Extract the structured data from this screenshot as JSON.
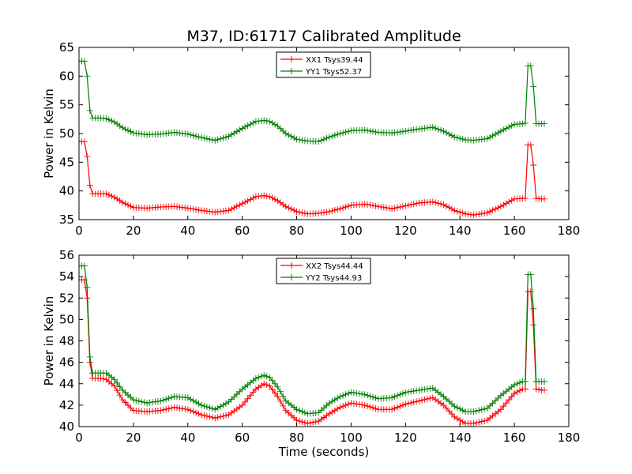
{
  "title": "M37, ID:61717 Calibrated Amplitude",
  "colors": {
    "xx": "#ff0000",
    "yy": "#008000"
  },
  "chart_data": [
    {
      "type": "line",
      "ylabel": "Power in Kelvin",
      "xlabel": "",
      "xlim": [
        0,
        180
      ],
      "ylim": [
        35,
        65
      ],
      "xticks": [
        0,
        20,
        40,
        60,
        80,
        100,
        120,
        140,
        160,
        180
      ],
      "yticks": [
        35,
        40,
        45,
        50,
        55,
        60,
        65
      ],
      "legend": {
        "placement": "top-center"
      },
      "marker": "+",
      "series": [
        {
          "name": "XX1 Tsys39.44",
          "color": "#ff0000",
          "x": [
            0,
            2,
            3,
            4,
            5,
            8,
            10,
            13,
            16,
            20,
            25,
            30,
            35,
            40,
            45,
            50,
            55,
            60,
            65,
            68,
            70,
            73,
            76,
            80,
            84,
            88,
            92,
            96,
            100,
            105,
            110,
            115,
            120,
            125,
            130,
            134,
            138,
            142,
            145,
            150,
            155,
            160,
            163,
            164,
            165,
            166,
            167,
            168,
            170,
            171
          ],
          "y": [
            48.6,
            48.6,
            46.0,
            41.0,
            39.5,
            39.5,
            39.5,
            38.9,
            38.0,
            37.1,
            37.0,
            37.2,
            37.3,
            37.0,
            36.6,
            36.3,
            36.6,
            37.8,
            39.0,
            39.2,
            39.0,
            38.3,
            37.3,
            36.4,
            36.0,
            36.1,
            36.4,
            36.9,
            37.5,
            37.7,
            37.3,
            36.9,
            37.4,
            37.9,
            38.1,
            37.6,
            36.6,
            36.0,
            35.8,
            36.2,
            37.3,
            38.6,
            38.7,
            38.7,
            48.0,
            48.0,
            44.5,
            38.7,
            38.6,
            38.6
          ]
        },
        {
          "name": "YY1 Tsys52.37",
          "color": "#008000",
          "x": [
            0,
            2,
            3,
            4,
            5,
            8,
            10,
            13,
            16,
            20,
            25,
            30,
            35,
            40,
            45,
            50,
            55,
            60,
            65,
            68,
            70,
            73,
            76,
            80,
            84,
            88,
            92,
            96,
            100,
            105,
            110,
            115,
            120,
            125,
            130,
            134,
            138,
            142,
            145,
            150,
            155,
            160,
            163,
            164,
            165,
            166,
            167,
            168,
            170,
            171
          ],
          "y": [
            62.6,
            62.6,
            60.0,
            54.0,
            52.7,
            52.7,
            52.6,
            52.0,
            51.0,
            50.1,
            49.8,
            49.9,
            50.2,
            49.9,
            49.3,
            48.8,
            49.5,
            50.9,
            52.1,
            52.3,
            52.1,
            51.3,
            50.0,
            49.0,
            48.7,
            48.6,
            49.4,
            50.0,
            50.5,
            50.6,
            50.2,
            50.1,
            50.4,
            50.8,
            51.1,
            50.4,
            49.4,
            48.9,
            48.8,
            49.1,
            50.4,
            51.6,
            51.7,
            51.8,
            61.8,
            61.8,
            58.2,
            51.7,
            51.7,
            51.7
          ]
        }
      ]
    },
    {
      "type": "line",
      "ylabel": "Power in Kelvin",
      "xlabel": "Time (seconds)",
      "xlim": [
        0,
        180
      ],
      "ylim": [
        40,
        56
      ],
      "xticks": [
        0,
        20,
        40,
        60,
        80,
        100,
        120,
        140,
        160,
        180
      ],
      "yticks": [
        40,
        42,
        44,
        46,
        48,
        50,
        52,
        54,
        56
      ],
      "legend": {
        "placement": "top-center"
      },
      "marker": "+",
      "series": [
        {
          "name": "XX2 Tsys44.44",
          "color": "#ff0000",
          "x": [
            0,
            2,
            3,
            4,
            5,
            8,
            10,
            13,
            16,
            20,
            25,
            30,
            35,
            40,
            45,
            50,
            55,
            60,
            65,
            68,
            70,
            73,
            76,
            80,
            84,
            88,
            92,
            96,
            100,
            105,
            110,
            115,
            120,
            125,
            130,
            134,
            138,
            142,
            145,
            150,
            155,
            160,
            163,
            164,
            165,
            166,
            167,
            168,
            170,
            171
          ],
          "y": [
            53.7,
            53.7,
            52.0,
            46.0,
            44.5,
            44.5,
            44.4,
            43.8,
            42.5,
            41.5,
            41.4,
            41.5,
            41.8,
            41.6,
            41.1,
            40.8,
            41.1,
            42.0,
            43.5,
            44.0,
            43.8,
            42.8,
            41.5,
            40.6,
            40.3,
            40.5,
            41.2,
            41.8,
            42.2,
            42.0,
            41.6,
            41.6,
            42.1,
            42.4,
            42.7,
            42.0,
            40.9,
            40.3,
            40.3,
            40.6,
            41.6,
            43.1,
            43.5,
            43.5,
            52.6,
            52.6,
            49.5,
            43.5,
            43.4,
            43.4
          ]
        },
        {
          "name": "YY2 Tsys44.93",
          "color": "#008000",
          "x": [
            0,
            2,
            3,
            4,
            5,
            8,
            10,
            13,
            16,
            20,
            25,
            30,
            35,
            40,
            45,
            50,
            55,
            60,
            65,
            68,
            70,
            73,
            76,
            80,
            84,
            88,
            92,
            96,
            100,
            105,
            110,
            115,
            120,
            125,
            130,
            134,
            138,
            142,
            145,
            150,
            155,
            160,
            163,
            164,
            165,
            166,
            167,
            168,
            170,
            171
          ],
          "y": [
            55.0,
            55.0,
            53.0,
            46.5,
            45.0,
            45.0,
            45.0,
            44.4,
            43.4,
            42.5,
            42.2,
            42.4,
            42.8,
            42.7,
            42.0,
            41.6,
            42.3,
            43.5,
            44.5,
            44.8,
            44.6,
            43.7,
            42.4,
            41.6,
            41.2,
            41.3,
            42.2,
            42.8,
            43.2,
            43.0,
            42.6,
            42.7,
            43.2,
            43.4,
            43.6,
            42.8,
            41.9,
            41.4,
            41.4,
            41.7,
            42.9,
            43.9,
            44.2,
            44.2,
            54.2,
            54.2,
            51.0,
            44.2,
            44.2,
            44.2
          ]
        }
      ]
    }
  ]
}
